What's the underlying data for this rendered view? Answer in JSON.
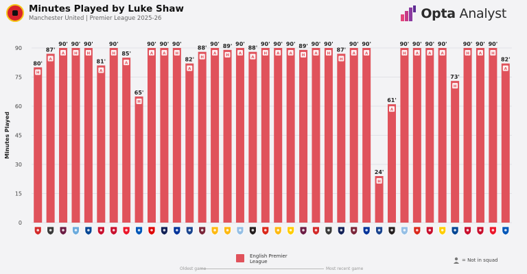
{
  "header": {
    "title": "Minutes Played by Luke Shaw",
    "subtitle": "Manchester United | Premier League 2025-26",
    "brand_bold": "Opta",
    "brand_regular": " Analyst"
  },
  "legend": {
    "label": "English Premier League",
    "note": "= Not in squad"
  },
  "axis_ends": {
    "left": "Oldest game",
    "right": "Most recent game"
  },
  "colors": {
    "bar": "#e0525b",
    "grid": "#e2e2e6",
    "background": "#f3f3f5"
  },
  "chart_data": {
    "type": "bar",
    "title": "Minutes Played by Luke Shaw",
    "subtitle": "Manchester United | Premier League 2025-26",
    "ylabel": "Minutes Played",
    "xlabel": "",
    "ylim": [
      0,
      90
    ],
    "yticks": [
      0,
      15,
      30,
      45,
      60,
      75,
      90
    ],
    "grid": true,
    "series": [
      {
        "name": "English Premier League",
        "values": [
          80,
          87,
          90,
          90,
          90,
          81,
          90,
          85,
          65,
          90,
          90,
          90,
          82,
          88,
          90,
          89,
          90,
          88,
          90,
          90,
          90,
          89,
          90,
          90,
          87,
          90,
          90,
          24,
          61,
          90,
          90,
          90,
          90,
          73,
          90,
          90,
          90,
          82
        ],
        "venue": [
          "H",
          "A",
          "A",
          "H",
          "H",
          "A",
          "H",
          "A",
          "H",
          "A",
          "A",
          "H",
          "A",
          "H",
          "A",
          "H",
          "A",
          "A",
          "H",
          "A",
          "A",
          "H",
          "A",
          "H",
          "H",
          "A",
          "A",
          "H",
          "A",
          "H",
          "A",
          "A",
          "A",
          "H",
          "H",
          "A",
          "H",
          "A"
        ],
        "labels": [
          "80'",
          "87'",
          "90'",
          "90'",
          "90'",
          "81'",
          "90'",
          "85'",
          "65'",
          "90'",
          "90'",
          "90'",
          "82'",
          "88'",
          "90'",
          "89'",
          "90'",
          "88'",
          "90'",
          "90'",
          "90'",
          "89'",
          "90'",
          "90'",
          "87'",
          "90'",
          "90'",
          "24'",
          "61'",
          "90'",
          "90'",
          "90'",
          "90'",
          "73'",
          "90'",
          "90'",
          "90'",
          "82'"
        ]
      }
    ],
    "opponent_icons": [
      "arsenal-badge",
      "fulham-badge",
      "burnley-badge",
      "man-city-badge",
      "chelsea-badge",
      "brentford-badge",
      "liverpool-badge",
      "sunderland-badge",
      "brighton-badge",
      "nottingham-forest-badge",
      "tottenham-badge",
      "everton-badge",
      "crystal-palace-badge",
      "west-ham-badge",
      "wolves-badge",
      "wolves-badge",
      "aston-villa-badge",
      "newcastle-badge",
      "bournemouth-badge",
      "wolves-badge",
      "leeds-badge",
      "burnley-badge",
      "arsenal-badge",
      "fulham-badge",
      "tottenham-badge",
      "west-ham-badge",
      "everton-badge",
      "crystal-palace-badge",
      "newcastle-badge",
      "aston-villa-badge",
      "bournemouth-badge",
      "brentford-badge",
      "leeds-badge",
      "chelsea-badge",
      "brentford-badge",
      "liverpool-badge",
      "sunderland-badge",
      "brighton-badge"
    ]
  }
}
